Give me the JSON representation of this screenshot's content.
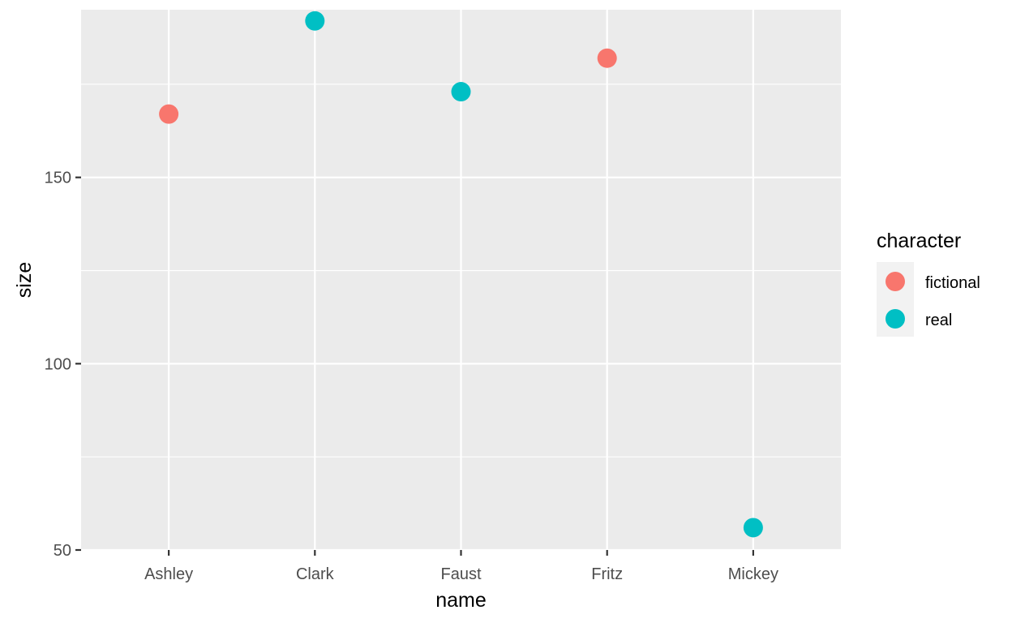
{
  "chart_data": {
    "type": "scatter",
    "xlabel": "name",
    "ylabel": "size",
    "categories": [
      "Ashley",
      "Clark",
      "Faust",
      "Fritz",
      "Mickey"
    ],
    "ylim": [
      50,
      195
    ],
    "y_ticks": [
      "50",
      "100",
      "150"
    ],
    "grid": true,
    "legend": {
      "title": "character",
      "position": "right",
      "entries": [
        {
          "label": "fictional",
          "color": "#F8766D"
        },
        {
          "label": "real",
          "color": "#00BFC4"
        }
      ]
    },
    "points": [
      {
        "x": "Ashley",
        "y": 167,
        "group": "fictional"
      },
      {
        "x": "Clark",
        "y": 192,
        "group": "real"
      },
      {
        "x": "Faust",
        "y": 173,
        "group": "real"
      },
      {
        "x": "Fritz",
        "y": 182,
        "group": "fictional"
      },
      {
        "x": "Mickey",
        "y": 56,
        "group": "real"
      }
    ],
    "colors": {
      "panel": "#EBEBEB",
      "grid": "#FFFFFF",
      "fictional": "#F8766D",
      "real": "#00BFC4"
    }
  }
}
